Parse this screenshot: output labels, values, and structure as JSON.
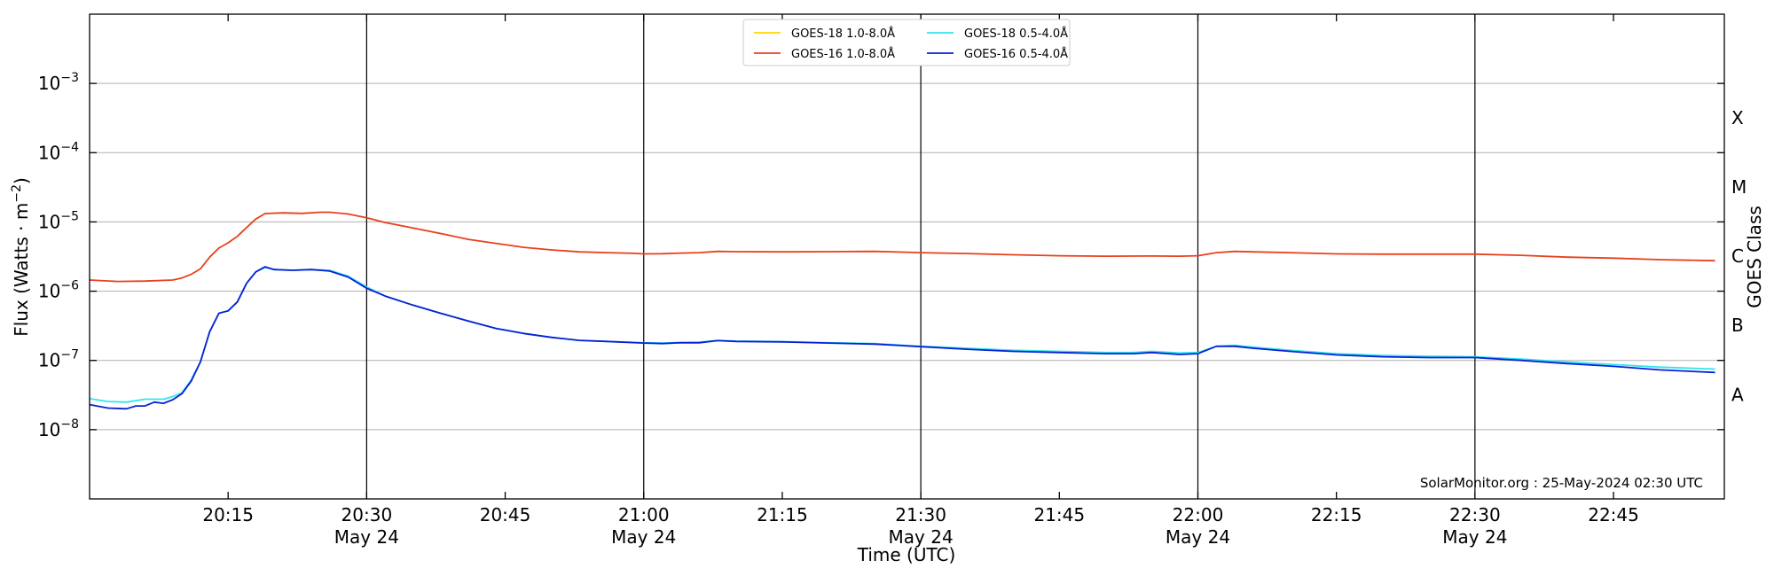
{
  "chart_data": {
    "type": "line",
    "title": "",
    "xlabel": "Time (UTC)",
    "ylabel": "Flux (Watts · m",
    "ylabel_sup": "−2",
    "ylabel_close": ")",
    "y2label": "GOES Class",
    "y_scale": "log",
    "ylim": [
      1e-09,
      0.01
    ],
    "xlim_minutes": [
      1200,
      1377
    ],
    "grid": true,
    "legend_placement": "top-center",
    "y_ticks": [
      {
        "value": 1e-08,
        "base": "10",
        "exp": "−8"
      },
      {
        "value": 1e-07,
        "base": "10",
        "exp": "−7"
      },
      {
        "value": 1e-06,
        "base": "10",
        "exp": "−6"
      },
      {
        "value": 1e-05,
        "base": "10",
        "exp": "−5"
      },
      {
        "value": 0.0001,
        "base": "10",
        "exp": "−4"
      },
      {
        "value": 0.001,
        "base": "10",
        "exp": "−3"
      }
    ],
    "x_ticks": [
      {
        "minute": 1215,
        "label": "20:15",
        "date": ""
      },
      {
        "minute": 1230,
        "label": "20:30",
        "date": "May 24"
      },
      {
        "minute": 1245,
        "label": "20:45",
        "date": ""
      },
      {
        "minute": 1260,
        "label": "21:00",
        "date": "May 24"
      },
      {
        "minute": 1275,
        "label": "21:15",
        "date": ""
      },
      {
        "minute": 1290,
        "label": "21:30",
        "date": "May 24"
      },
      {
        "minute": 1305,
        "label": "21:45",
        "date": ""
      },
      {
        "minute": 1320,
        "label": "22:00",
        "date": "May 24"
      },
      {
        "minute": 1335,
        "label": "22:15",
        "date": ""
      },
      {
        "minute": 1350,
        "label": "22:30",
        "date": "May 24"
      },
      {
        "minute": 1365,
        "label": "22:45",
        "date": ""
      }
    ],
    "vlines_minutes": [
      1230,
      1260,
      1290,
      1320,
      1350
    ],
    "goes_classes": [
      {
        "label": "A",
        "value": 3.2e-08
      },
      {
        "label": "B",
        "value": 3.2e-07
      },
      {
        "label": "C",
        "value": 3.2e-06
      },
      {
        "label": "M",
        "value": 3.2e-05
      },
      {
        "label": "X",
        "value": 0.00032
      }
    ],
    "series": [
      {
        "name": "GOES-18 1.0-8.0Å",
        "color": "#FFD700",
        "points": []
      },
      {
        "name": "GOES-16 1.0-8.0Å",
        "color": "#E8401C",
        "points": [
          [
            1200,
            1.45e-06
          ],
          [
            1203,
            1.38e-06
          ],
          [
            1206,
            1.4e-06
          ],
          [
            1209,
            1.45e-06
          ],
          [
            1210,
            1.55e-06
          ],
          [
            1211,
            1.75e-06
          ],
          [
            1212,
            2.1e-06
          ],
          [
            1213,
            3.1e-06
          ],
          [
            1214,
            4.2e-06
          ],
          [
            1215,
            5e-06
          ],
          [
            1216,
            6.2e-06
          ],
          [
            1217,
            8.3e-06
          ],
          [
            1218,
            1.1e-05
          ],
          [
            1219,
            1.32e-05
          ],
          [
            1221,
            1.35e-05
          ],
          [
            1223,
            1.33e-05
          ],
          [
            1225,
            1.38e-05
          ],
          [
            1226,
            1.38e-05
          ],
          [
            1228,
            1.3e-05
          ],
          [
            1230,
            1.15e-05
          ],
          [
            1232,
            9.8e-06
          ],
          [
            1235,
            8.2e-06
          ],
          [
            1238,
            6.8e-06
          ],
          [
            1241,
            5.6e-06
          ],
          [
            1244,
            4.9e-06
          ],
          [
            1247,
            4.3e-06
          ],
          [
            1250,
            3.95e-06
          ],
          [
            1253,
            3.7e-06
          ],
          [
            1256,
            3.6e-06
          ],
          [
            1259,
            3.52e-06
          ],
          [
            1260,
            3.45e-06
          ],
          [
            1262,
            3.48e-06
          ],
          [
            1264,
            3.55e-06
          ],
          [
            1266,
            3.6e-06
          ],
          [
            1268,
            3.75e-06
          ],
          [
            1270,
            3.72e-06
          ],
          [
            1275,
            3.7e-06
          ],
          [
            1280,
            3.72e-06
          ],
          [
            1285,
            3.75e-06
          ],
          [
            1290,
            3.6e-06
          ],
          [
            1295,
            3.5e-06
          ],
          [
            1300,
            3.35e-06
          ],
          [
            1305,
            3.25e-06
          ],
          [
            1310,
            3.2e-06
          ],
          [
            1315,
            3.22e-06
          ],
          [
            1318,
            3.2e-06
          ],
          [
            1320,
            3.25e-06
          ],
          [
            1322,
            3.6e-06
          ],
          [
            1324,
            3.75e-06
          ],
          [
            1326,
            3.7e-06
          ],
          [
            1330,
            3.6e-06
          ],
          [
            1335,
            3.45e-06
          ],
          [
            1340,
            3.42e-06
          ],
          [
            1345,
            3.42e-06
          ],
          [
            1350,
            3.42e-06
          ],
          [
            1355,
            3.3e-06
          ],
          [
            1360,
            3.1e-06
          ],
          [
            1365,
            3e-06
          ],
          [
            1370,
            2.85e-06
          ],
          [
            1376,
            2.75e-06
          ]
        ]
      },
      {
        "name": "GOES-18 0.5-4.0Å",
        "color": "#2FE5F0",
        "points": [
          [
            1200,
            2.8e-08
          ],
          [
            1202,
            2.55e-08
          ],
          [
            1204,
            2.5e-08
          ],
          [
            1206,
            2.75e-08
          ],
          [
            1208,
            2.75e-08
          ],
          [
            1209,
            3e-08
          ],
          [
            1210,
            3.4e-08
          ],
          [
            1211,
            5.2e-08
          ],
          [
            1212,
            9.5e-08
          ],
          [
            1213,
            2.6e-07
          ],
          [
            1214,
            4.8e-07
          ],
          [
            1215,
            5.2e-07
          ],
          [
            1216,
            7e-07
          ],
          [
            1217,
            1.3e-06
          ],
          [
            1218,
            1.9e-06
          ],
          [
            1219,
            2.2e-06
          ],
          [
            1220,
            2.05e-06
          ],
          [
            1222,
            2e-06
          ],
          [
            1224,
            2.05e-06
          ],
          [
            1226,
            2e-06
          ],
          [
            1228,
            1.65e-06
          ],
          [
            1230,
            1.15e-06
          ],
          [
            1232,
            8.5e-07
          ],
          [
            1235,
            6.3e-07
          ],
          [
            1238,
            4.8e-07
          ],
          [
            1241,
            3.7e-07
          ],
          [
            1244,
            2.9e-07
          ],
          [
            1247,
            2.45e-07
          ],
          [
            1250,
            2.15e-07
          ],
          [
            1253,
            1.95e-07
          ],
          [
            1256,
            1.88e-07
          ],
          [
            1260,
            1.8e-07
          ],
          [
            1262,
            1.78e-07
          ],
          [
            1264,
            1.82e-07
          ],
          [
            1266,
            1.83e-07
          ],
          [
            1268,
            1.95e-07
          ],
          [
            1270,
            1.9e-07
          ],
          [
            1275,
            1.87e-07
          ],
          [
            1280,
            1.8e-07
          ],
          [
            1285,
            1.75e-07
          ],
          [
            1290,
            1.6e-07
          ],
          [
            1295,
            1.5e-07
          ],
          [
            1300,
            1.4e-07
          ],
          [
            1305,
            1.35e-07
          ],
          [
            1310,
            1.3e-07
          ],
          [
            1313,
            1.3e-07
          ],
          [
            1315,
            1.35e-07
          ],
          [
            1318,
            1.28e-07
          ],
          [
            1320,
            1.3e-07
          ],
          [
            1322,
            1.6e-07
          ],
          [
            1324,
            1.65e-07
          ],
          [
            1326,
            1.55e-07
          ],
          [
            1330,
            1.4e-07
          ],
          [
            1335,
            1.25e-07
          ],
          [
            1340,
            1.18e-07
          ],
          [
            1345,
            1.15e-07
          ],
          [
            1350,
            1.13e-07
          ],
          [
            1355,
            1.05e-07
          ],
          [
            1360,
            9.5e-08
          ],
          [
            1365,
            8.7e-08
          ],
          [
            1370,
            8e-08
          ],
          [
            1376,
            7.5e-08
          ]
        ]
      },
      {
        "name": "GOES-16 0.5-4.0Å",
        "color": "#0A20D4",
        "points": [
          [
            1200,
            2.3e-08
          ],
          [
            1202,
            2.05e-08
          ],
          [
            1204,
            2e-08
          ],
          [
            1205,
            2.2e-08
          ],
          [
            1206,
            2.2e-08
          ],
          [
            1207,
            2.5e-08
          ],
          [
            1208,
            2.4e-08
          ],
          [
            1209,
            2.7e-08
          ],
          [
            1210,
            3.3e-08
          ],
          [
            1211,
            5e-08
          ],
          [
            1212,
            9.5e-08
          ],
          [
            1213,
            2.6e-07
          ],
          [
            1214,
            4.8e-07
          ],
          [
            1215,
            5.2e-07
          ],
          [
            1216,
            7e-07
          ],
          [
            1217,
            1.3e-06
          ],
          [
            1218,
            1.9e-06
          ],
          [
            1219,
            2.25e-06
          ],
          [
            1220,
            2.05e-06
          ],
          [
            1222,
            2e-06
          ],
          [
            1224,
            2.05e-06
          ],
          [
            1226,
            1.95e-06
          ],
          [
            1228,
            1.6e-06
          ],
          [
            1230,
            1.1e-06
          ],
          [
            1232,
            8.5e-07
          ],
          [
            1235,
            6.3e-07
          ],
          [
            1238,
            4.8e-07
          ],
          [
            1241,
            3.7e-07
          ],
          [
            1244,
            2.9e-07
          ],
          [
            1247,
            2.45e-07
          ],
          [
            1250,
            2.15e-07
          ],
          [
            1253,
            1.95e-07
          ],
          [
            1256,
            1.88e-07
          ],
          [
            1260,
            1.78e-07
          ],
          [
            1262,
            1.75e-07
          ],
          [
            1264,
            1.8e-07
          ],
          [
            1266,
            1.8e-07
          ],
          [
            1268,
            1.93e-07
          ],
          [
            1270,
            1.88e-07
          ],
          [
            1275,
            1.85e-07
          ],
          [
            1280,
            1.78e-07
          ],
          [
            1285,
            1.72e-07
          ],
          [
            1290,
            1.58e-07
          ],
          [
            1295,
            1.45e-07
          ],
          [
            1300,
            1.35e-07
          ],
          [
            1305,
            1.3e-07
          ],
          [
            1310,
            1.25e-07
          ],
          [
            1313,
            1.25e-07
          ],
          [
            1315,
            1.3e-07
          ],
          [
            1318,
            1.22e-07
          ],
          [
            1320,
            1.25e-07
          ],
          [
            1322,
            1.6e-07
          ],
          [
            1324,
            1.6e-07
          ],
          [
            1326,
            1.5e-07
          ],
          [
            1330,
            1.35e-07
          ],
          [
            1335,
            1.2e-07
          ],
          [
            1340,
            1.13e-07
          ],
          [
            1345,
            1.1e-07
          ],
          [
            1350,
            1.1e-07
          ],
          [
            1355,
            1e-07
          ],
          [
            1360,
            9e-08
          ],
          [
            1365,
            8.2e-08
          ],
          [
            1370,
            7.3e-08
          ],
          [
            1376,
            6.7e-08
          ]
        ]
      }
    ],
    "watermark": "SolarMonitor.org : 25-May-2024 02:30 UTC"
  }
}
